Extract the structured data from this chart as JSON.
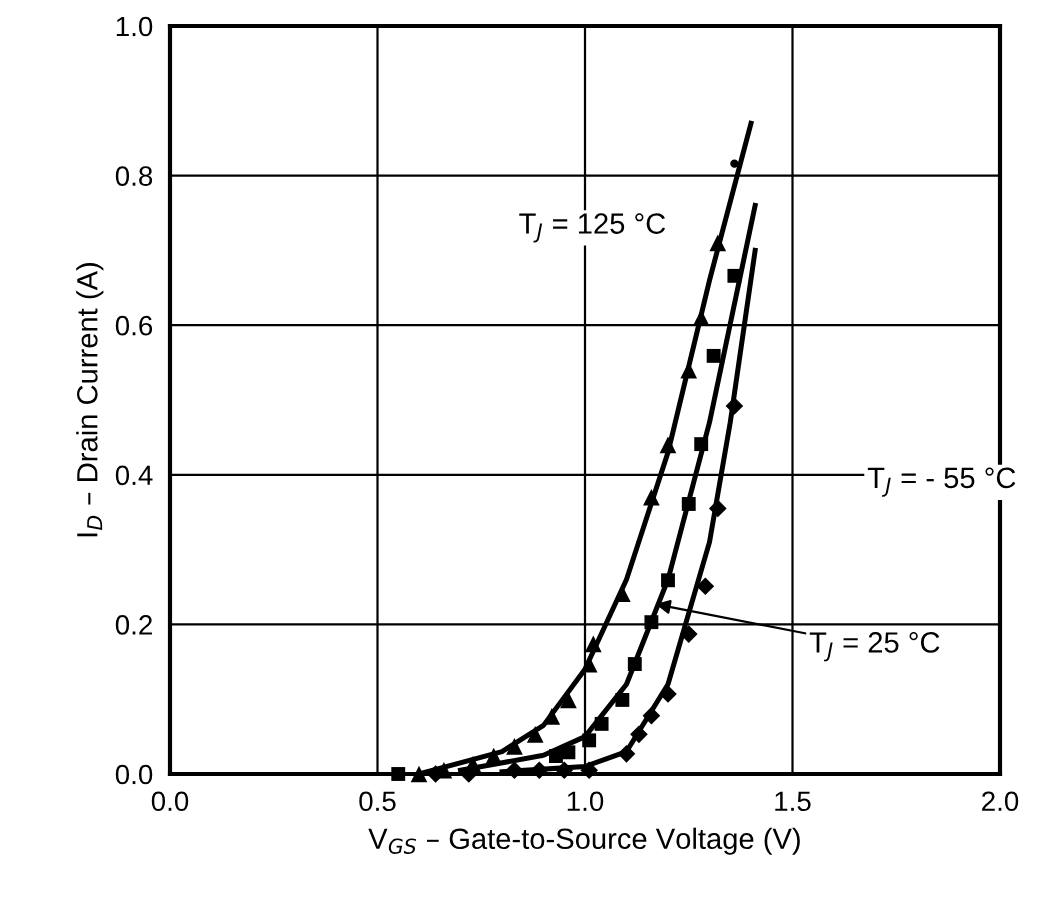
{
  "chart_data": {
    "type": "scatter",
    "xlabel": "V$_{GS}$ – Gate-to-Source Voltage (V)",
    "ylabel": "I$_{D}$ – Drain Current (A)",
    "xlim": [
      0,
      2
    ],
    "ylim": [
      0,
      1
    ],
    "xticks": [
      {
        "value": 0,
        "label": "0.0"
      },
      {
        "value": 0.5,
        "label": "0.5"
      },
      {
        "value": 1,
        "label": "1.0"
      },
      {
        "value": 1.5,
        "label": "1.5"
      },
      {
        "value": 2,
        "label": "2.0"
      }
    ],
    "yticks": [
      {
        "value": 0,
        "label": "0.0"
      },
      {
        "value": 0.2,
        "label": "0.2"
      },
      {
        "value": 0.4,
        "label": "0.4"
      },
      {
        "value": 0.6,
        "label": "0.6"
      },
      {
        "value": 0.8,
        "label": "0.8"
      },
      {
        "value": 1,
        "label": "1.0"
      }
    ],
    "grid": true,
    "series": [
      {
        "marker": "triangle",
        "color": "#000000",
        "x": [
          0.6,
          0.66,
          0.73,
          0.78,
          0.83,
          0.88,
          0.92,
          0.96,
          1.01,
          1.02,
          1.09,
          1.16,
          1.2,
          1.25,
          1.28,
          1.32
        ],
        "values": [
          0.0,
          0.005,
          0.013,
          0.024,
          0.037,
          0.053,
          0.077,
          0.099,
          0.147,
          0.174,
          0.241,
          0.37,
          0.44,
          0.54,
          0.61,
          0.71
        ]
      },
      {
        "marker": "square",
        "color": "#000000",
        "x": [
          0.55,
          0.88,
          0.93,
          0.96,
          1.01,
          1.04,
          1.09,
          1.12,
          1.16,
          1.2,
          1.25,
          1.28,
          1.31,
          1.36
        ],
        "values": [
          0.0,
          null,
          0.024,
          0.029,
          0.045,
          0.067,
          0.099,
          0.147,
          0.203,
          0.259,
          0.361,
          0.441,
          0.559,
          0.666
        ]
      },
      {
        "marker": "diamond",
        "color": "#000000",
        "x": [
          0.64,
          0.72,
          0.83,
          0.89,
          0.95,
          1.01,
          1.1,
          1.13,
          1.16,
          1.2,
          1.25,
          1.29,
          1.32,
          1.36
        ],
        "values": [
          0.0,
          0.0,
          0.005,
          0.005,
          0.005,
          0.005,
          0.027,
          0.053,
          0.078,
          0.107,
          0.187,
          0.251,
          0.355,
          0.492
        ]
      },
      {
        "marker": "circle",
        "color": "#000000",
        "x": [
          1.36
        ],
        "values": [
          0.816
        ]
      },
      {
        "type": "line",
        "marker": "none",
        "line_style": "solid",
        "color": "#000000",
        "x": [
          0.6,
          0.8,
          0.9,
          1.0,
          1.1,
          1.2,
          1.3,
          1.4
        ],
        "values": [
          0.0,
          0.03,
          0.065,
          0.14,
          0.26,
          0.43,
          0.66,
          0.87
        ]
      },
      {
        "type": "line",
        "marker": "none",
        "line_style": "solid",
        "color": "#000000",
        "x": [
          0.7,
          0.9,
          1.0,
          1.1,
          1.2,
          1.3,
          1.41
        ],
        "values": [
          0.005,
          0.025,
          0.05,
          0.12,
          0.26,
          0.47,
          0.76
        ]
      },
      {
        "type": "line",
        "marker": "none",
        "line_style": "solid",
        "color": "#000000",
        "x": [
          0.8,
          1.0,
          1.1,
          1.2,
          1.3,
          1.35,
          1.41
        ],
        "values": [
          0.003,
          0.01,
          0.03,
          0.12,
          0.31,
          0.47,
          0.7
        ]
      }
    ],
    "annotations": [
      "T$_{J}$ = 125 °C",
      "T$_{J}$ = - 55 °C",
      {
        "text": "T$_{J}$ = 25 °C",
        "x": 1.17,
        "y": 0.227
      }
    ]
  }
}
